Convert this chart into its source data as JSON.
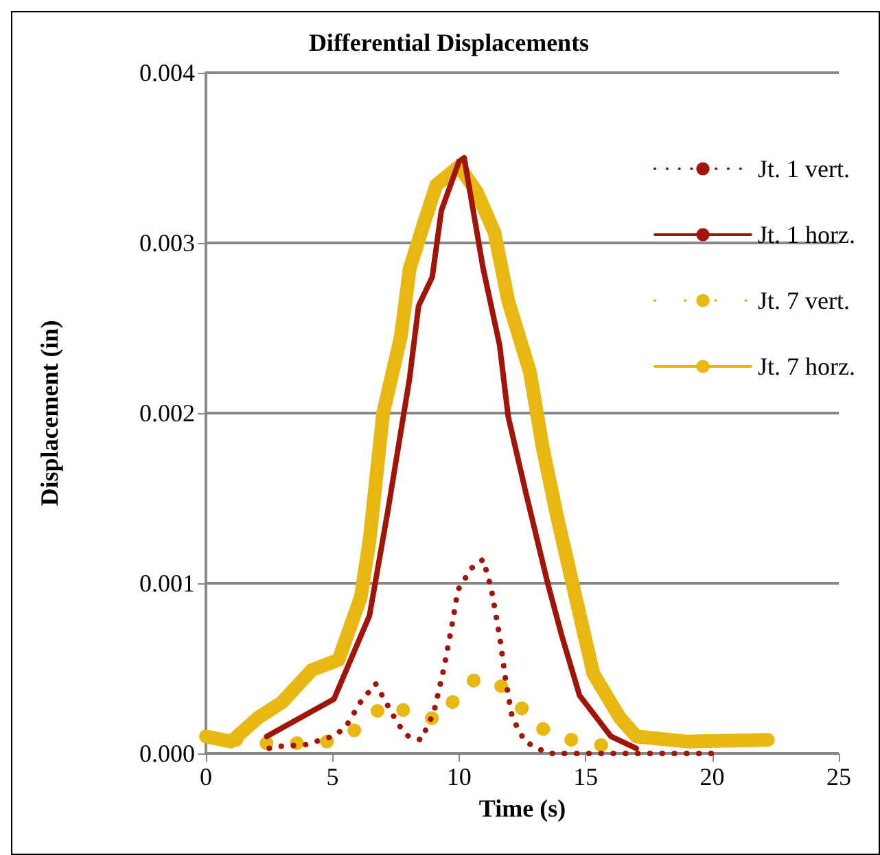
{
  "chart_data": {
    "type": "line",
    "title": "Differential Displacements",
    "xlabel": "Time (s)",
    "ylabel": "Displacement (in)",
    "xlim": [
      0,
      25
    ],
    "xticks": [
      0,
      5,
      10,
      15,
      20,
      25
    ],
    "ylim": [
      0,
      0.004
    ],
    "yticks": [
      {
        "value": 0,
        "label": "0.000"
      },
      {
        "value": 0.001,
        "label": "0.001"
      },
      {
        "value": 0.002,
        "label": "0.002"
      },
      {
        "value": 0.003,
        "label": "0.003"
      },
      {
        "value": 0.004,
        "label": "0.004"
      }
    ],
    "grid": "y",
    "legend": "right",
    "marker": "none",
    "series": [
      {
        "name": "Jt. 1 vert.",
        "color": "#a01508",
        "line_style": "dotted",
        "x": [
          2.5,
          2.75,
          3.9,
          5.0,
          5.5,
          6.1,
          6.7,
          7.0,
          7.6,
          8.0,
          8.5,
          9.0,
          9.4,
          9.74,
          9.95,
          10.5,
          10.95,
          11.27,
          11.6,
          11.85,
          12.1,
          12.6,
          13.5,
          20.0
        ],
        "values": [
          3e-05,
          4e-05,
          5e-05,
          0.0001,
          0.00015,
          0.0003,
          0.00041,
          0.00033,
          0.00017,
          0.0001,
          8e-05,
          0.00024,
          0.0005,
          0.00077,
          0.00096,
          0.00109,
          0.00114,
          0.00097,
          0.00069,
          0.00042,
          0.00021,
          7e-05,
          0,
          0
        ]
      },
      {
        "name": "Jt. 1 horz.",
        "color": "#a01508",
        "line_style": "solid",
        "x": [
          2.4,
          5.06,
          6.46,
          7.18,
          8.04,
          8.4,
          8.94,
          9.3,
          10.0,
          10.2,
          10.95,
          11.6,
          11.94,
          12.64,
          13.5,
          14.06,
          14.76,
          16.0,
          17.0
        ],
        "values": [
          0.0001,
          0.00032,
          0.00081,
          0.00142,
          0.0022,
          0.00263,
          0.0028,
          0.00319,
          0.00348,
          0.0035,
          0.00285,
          0.0024,
          0.00198,
          0.00153,
          0.001,
          0.00069,
          0.00034,
          0.0001,
          3e-05
        ]
      },
      {
        "name": "Jt. 7 vert.",
        "color": "#e8b712",
        "line_style": "dotted",
        "x": [
          1.2,
          2.3,
          3.4,
          4.5,
          5.6,
          6.4,
          7.26,
          8.2,
          9.3,
          9.95,
          10.67,
          11.5,
          12.3,
          12.97,
          13.9,
          15.0,
          16.1
        ],
        "values": [
          8e-05,
          6e-05,
          6e-05,
          6e-05,
          0.0001,
          0.00021,
          0.0003,
          0.00022,
          0.0002,
          0.00035,
          0.00044,
          0.00042,
          0.0003,
          0.00017,
          0.0001,
          6e-05,
          4e-05
        ]
      },
      {
        "name": "Jt. 7 horz.",
        "color": "#e8b712",
        "line_style": "solid",
        "x": [
          0,
          1.0,
          2.06,
          3.0,
          4.18,
          5.24,
          6.12,
          6.47,
          7.0,
          7.7,
          8.05,
          8.6,
          9.1,
          10.0,
          10.7,
          11.4,
          11.94,
          12.8,
          13.3,
          13.86,
          14.6,
          15.3,
          16.35,
          17.0,
          19.0,
          22.2
        ],
        "values": [
          0.0001,
          7e-05,
          0.00021,
          0.0003,
          0.00049,
          0.00055,
          0.00092,
          0.00126,
          0.002,
          0.00245,
          0.00285,
          0.00311,
          0.00334,
          0.00345,
          0.0033,
          0.00306,
          0.00266,
          0.00224,
          0.0018,
          0.0014,
          0.00092,
          0.00047,
          0.00021,
          0.0001,
          7e-05,
          8e-05
        ]
      }
    ]
  }
}
